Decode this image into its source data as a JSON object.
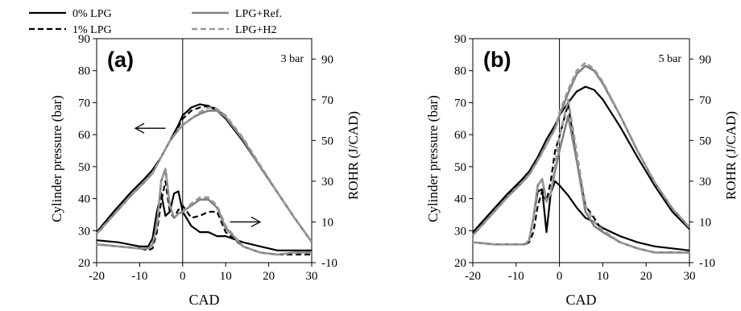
{
  "legend": {
    "entries": [
      {
        "label": "0% LPG",
        "color": "#000000",
        "dash": "solid"
      },
      {
        "label": "1% LPG",
        "color": "#000000",
        "dash": "dashed"
      },
      {
        "label": "LPG+Ref.",
        "color": "#808080",
        "dash": "solid"
      },
      {
        "label": "LPG+H2",
        "color": "#999999",
        "dash": "dashed"
      }
    ]
  },
  "chart_data": [
    {
      "type": "line",
      "panel_label": "(a)",
      "condition": "3 bar",
      "xlabel": "CAD",
      "ylabel": "Cylinder pressure (bar)",
      "y2label": "ROHR (J/CAD)",
      "xlim": [
        -20,
        30
      ],
      "ylim": [
        20,
        90
      ],
      "y2lim": [
        -10,
        100
      ],
      "xticks": [
        "-20",
        "-10",
        "0",
        "10",
        "20",
        "30"
      ],
      "yticks": [
        "20",
        "30",
        "40",
        "50",
        "60",
        "70",
        "80",
        "90"
      ],
      "y2ticks": [
        "-10",
        "10",
        "30",
        "50",
        "70",
        "90"
      ],
      "arrows": [
        {
          "direction": "left",
          "axis": "pressure",
          "from": [
            -4,
            62
          ],
          "to": [
            -11,
            62
          ]
        },
        {
          "direction": "right",
          "axis": "rohr",
          "from": [
            11,
            10
          ],
          "to": [
            18,
            10
          ]
        }
      ],
      "series": [
        {
          "legend": "0% LPG",
          "axis": "pressure",
          "x": [
            -20,
            -16,
            -12,
            -9,
            -7,
            -5,
            -3,
            -1,
            0,
            2,
            4,
            6,
            8,
            10,
            14,
            18,
            22,
            26,
            30
          ],
          "y": [
            29.5,
            36,
            42,
            46,
            49,
            53,
            58,
            63,
            66,
            68.5,
            69.5,
            69,
            67.5,
            65,
            58,
            50,
            42,
            34,
            26.5
          ]
        },
        {
          "legend": "1% LPG",
          "axis": "pressure",
          "x": [
            -20,
            -16,
            -12,
            -9,
            -7,
            -5,
            -3,
            -1,
            0,
            2,
            4,
            6,
            8,
            10,
            14,
            18,
            22,
            26,
            30
          ],
          "y": [
            29.5,
            36,
            42,
            46,
            49,
            53,
            58,
            62.5,
            65,
            67.5,
            68.5,
            69,
            68,
            65.5,
            58.5,
            50,
            42,
            34,
            26.5
          ]
        },
        {
          "legend": "LPG+Ref.",
          "axis": "pressure",
          "x": [
            -20,
            -16,
            -12,
            -9,
            -7,
            -5,
            -3,
            -1,
            0,
            2,
            4,
            6,
            8,
            10,
            14,
            18,
            22,
            26,
            30
          ],
          "y": [
            29,
            35,
            41,
            45,
            48,
            53,
            58,
            61.5,
            63,
            65,
            66.5,
            67.5,
            67.5,
            65.5,
            58.5,
            50,
            42,
            34,
            26.5
          ]
        },
        {
          "legend": "LPG+H2",
          "axis": "pressure",
          "x": [
            -20,
            -16,
            -12,
            -9,
            -7,
            -5,
            -3,
            -1,
            0,
            2,
            4,
            6,
            8,
            10,
            14,
            18,
            22,
            26,
            30
          ],
          "y": [
            29,
            35,
            41,
            45,
            48,
            53,
            58,
            61.5,
            63,
            65,
            67,
            68.5,
            68,
            66,
            59,
            50.5,
            42,
            34,
            26.5
          ]
        },
        {
          "legend": "0% LPG",
          "axis": "rohr",
          "x": [
            -20,
            -15,
            -10,
            -8,
            -7,
            -6,
            -5,
            -4,
            -3,
            -2,
            -1,
            0,
            2,
            4,
            6,
            8,
            10,
            14,
            18,
            22,
            26,
            30
          ],
          "y": [
            1,
            0,
            -2,
            -2,
            2,
            15,
            24,
            13,
            15,
            24,
            25,
            15,
            8,
            5,
            5,
            3,
            3,
            0,
            -2,
            -4,
            -4,
            -4
          ]
        },
        {
          "legend": "1% LPG",
          "axis": "rohr",
          "x": [
            -20,
            -15,
            -10,
            -8,
            -7,
            -6,
            -5,
            -4,
            -3,
            -2,
            -1,
            0,
            2,
            4,
            6,
            8,
            10,
            14,
            18,
            22,
            26,
            30
          ],
          "y": [
            -1,
            -2,
            -3,
            -4,
            -3,
            5,
            20,
            30,
            15,
            12,
            16,
            18,
            12,
            13,
            15,
            15,
            5,
            -2,
            -5,
            -6,
            -6,
            -6
          ]
        },
        {
          "legend": "LPG+Ref.",
          "axis": "rohr",
          "x": [
            -20,
            -15,
            -10,
            -8,
            -7,
            -6,
            -5,
            -4,
            -3,
            -2,
            -1,
            0,
            2,
            4,
            6,
            8,
            10,
            14,
            18,
            22,
            26,
            30
          ],
          "y": [
            -1,
            -2,
            -3,
            -3,
            -1,
            8,
            30,
            36,
            18,
            12,
            14,
            15,
            18,
            21,
            21,
            17,
            7,
            -2,
            -5,
            -6,
            -5,
            -5
          ]
        },
        {
          "legend": "LPG+H2",
          "axis": "rohr",
          "x": [
            -20,
            -15,
            -10,
            -8,
            -7,
            -6,
            -5,
            -4,
            -3,
            -2,
            -1,
            0,
            2,
            4,
            6,
            8,
            10,
            14,
            18,
            22,
            26,
            30
          ],
          "y": [
            -1,
            -2,
            -3,
            -3,
            -1,
            8,
            30,
            36,
            18,
            12,
            14,
            15,
            19,
            22,
            22,
            18,
            8,
            -2,
            -5,
            -6,
            -5,
            -5
          ]
        }
      ]
    },
    {
      "type": "line",
      "panel_label": "(b)",
      "condition": "5 bar",
      "xlabel": "CAD",
      "ylabel": "Cylinder pressure (bar)",
      "y2label": "ROHR (J/CAD)",
      "xlim": [
        -20,
        30
      ],
      "ylim": [
        20,
        90
      ],
      "y2lim": [
        -10,
        100
      ],
      "xticks": [
        "-20",
        "-10",
        "0",
        "10",
        "20",
        "30"
      ],
      "yticks": [
        "20",
        "30",
        "40",
        "50",
        "60",
        "70",
        "80",
        "90"
      ],
      "y2ticks": [
        "-10",
        "10",
        "30",
        "50",
        "70",
        "90"
      ],
      "arrows": [],
      "series": [
        {
          "legend": "0% LPG",
          "axis": "pressure",
          "x": [
            -20,
            -16,
            -12,
            -9,
            -7,
            -5,
            -3,
            -1,
            0,
            2,
            4,
            6,
            8,
            10,
            14,
            18,
            22,
            26,
            30
          ],
          "y": [
            29.5,
            35.5,
            41.5,
            45.5,
            48.5,
            53,
            58.5,
            63,
            66,
            70,
            73.5,
            75,
            74,
            71,
            62.5,
            53,
            44,
            36,
            30.5
          ]
        },
        {
          "legend": "1% LPG",
          "axis": "pressure",
          "x": [
            -20,
            -16,
            -12,
            -9,
            -7,
            -5,
            -3,
            -1,
            0,
            2,
            4,
            6,
            8,
            10,
            14,
            18,
            22,
            26,
            30
          ],
          "y": [
            29,
            35,
            41,
            45,
            48,
            52,
            57,
            62,
            66,
            73,
            79,
            81.5,
            80,
            76,
            66,
            55,
            45,
            37,
            31
          ]
        },
        {
          "legend": "LPG+Ref.",
          "axis": "pressure",
          "x": [
            -20,
            -16,
            -12,
            -9,
            -7,
            -5,
            -3,
            -1,
            0,
            2,
            4,
            6,
            8,
            10,
            14,
            18,
            22,
            26,
            30
          ],
          "y": [
            28.5,
            34.5,
            40.5,
            44.5,
            47.5,
            52,
            57,
            62,
            66,
            73,
            79,
            81.5,
            80,
            76,
            66,
            55,
            45,
            37,
            31
          ]
        },
        {
          "legend": "LPG+H2",
          "axis": "pressure",
          "x": [
            -20,
            -16,
            -12,
            -9,
            -7,
            -5,
            -3,
            -1,
            0,
            2,
            4,
            6,
            8,
            10,
            14,
            18,
            22,
            26,
            30
          ],
          "y": [
            28.5,
            34.5,
            40.5,
            44.5,
            47.5,
            52,
            57,
            62,
            67,
            74,
            80,
            82.5,
            80.5,
            76.5,
            66,
            55,
            45,
            37,
            31
          ]
        },
        {
          "legend": "0% LPG",
          "axis": "rohr",
          "x": [
            -20,
            -15,
            -10,
            -8,
            -7,
            -6,
            -5,
            -4,
            -3,
            -2,
            -1,
            0,
            2,
            4,
            6,
            8,
            10,
            14,
            18,
            22,
            26,
            30
          ],
          "y": [
            0,
            -1,
            -1,
            -1,
            1,
            12,
            25,
            26,
            5,
            24,
            30,
            28,
            23,
            17,
            12,
            10,
            7,
            3,
            0,
            -2,
            -3,
            -4
          ]
        },
        {
          "legend": "1% LPG",
          "axis": "rohr",
          "x": [
            -20,
            -15,
            -10,
            -8,
            -7,
            -6,
            -5,
            -4,
            -3,
            -2,
            -1,
            0,
            2,
            4,
            6,
            8,
            10,
            14,
            18,
            22,
            26,
            30
          ],
          "y": [
            0,
            -1,
            -1,
            -1,
            0,
            5,
            18,
            25,
            20,
            30,
            45,
            52,
            68,
            40,
            18,
            12,
            5,
            0,
            -3,
            -5,
            -5,
            -5
          ]
        },
        {
          "legend": "LPG+Ref.",
          "axis": "rohr",
          "x": [
            -20,
            -15,
            -10,
            -8,
            -7,
            -6,
            -5,
            -4,
            -3,
            -2,
            -1,
            0,
            2,
            4,
            6,
            8,
            10,
            14,
            18,
            22,
            26,
            30
          ],
          "y": [
            0,
            -1,
            -1,
            -1,
            1,
            12,
            28,
            31,
            20,
            24,
            35,
            45,
            62,
            40,
            15,
            8,
            5,
            0,
            -3,
            -5,
            -5,
            -5
          ]
        },
        {
          "legend": "LPG+H2",
          "axis": "rohr",
          "x": [
            -20,
            -15,
            -10,
            -8,
            -7,
            -6,
            -5,
            -4,
            -3,
            -2,
            -1,
            0,
            2,
            4,
            6,
            8,
            10,
            14,
            18,
            22,
            26,
            30
          ],
          "y": [
            0,
            -1,
            -1,
            -1,
            1,
            12,
            28,
            31,
            20,
            24,
            38,
            52,
            70,
            44,
            18,
            10,
            6,
            0,
            -3,
            -5,
            -5,
            -5
          ]
        }
      ]
    }
  ]
}
